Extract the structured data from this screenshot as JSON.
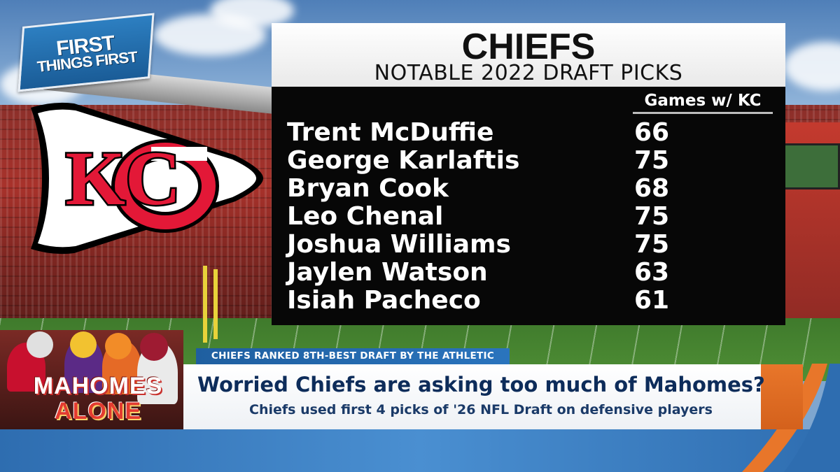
{
  "show_logo": {
    "line1": "FIRST",
    "line2": "THINGS FIRST"
  },
  "team_logo_letters": "KC",
  "graphic": {
    "title": "CHIEFS",
    "subtitle": "NOTABLE 2022 DRAFT PICKS",
    "column_header": "Games w/ KC",
    "rows": [
      {
        "name": "Trent McDuffie",
        "games": "66"
      },
      {
        "name": "George Karlaftis",
        "games": "75"
      },
      {
        "name": "Bryan Cook",
        "games": "68"
      },
      {
        "name": "Leo Chenal",
        "games": "75"
      },
      {
        "name": "Joshua Williams",
        "games": "75"
      },
      {
        "name": "Jaylen Watson",
        "games": "63"
      },
      {
        "name": "Isiah Pacheco",
        "games": "61"
      }
    ]
  },
  "ticker": {
    "text": "CHIEFS RANKED 8TH-BEST DRAFT BY THE ATHLETIC"
  },
  "lower_third": {
    "headline": "Worried Chiefs are asking too much of Mahomes?",
    "subline": "Chiefs used first 4 picks of '26 NFL Draft on defensive players"
  },
  "segment_badge": {
    "line1": "MAHOMES",
    "line2": "ALONE"
  },
  "colors": {
    "chiefs_red": "#e31837",
    "navy": "#0d2c5a",
    "ticker_blue": "#2a74bd",
    "accent_orange": "#e8762a"
  }
}
